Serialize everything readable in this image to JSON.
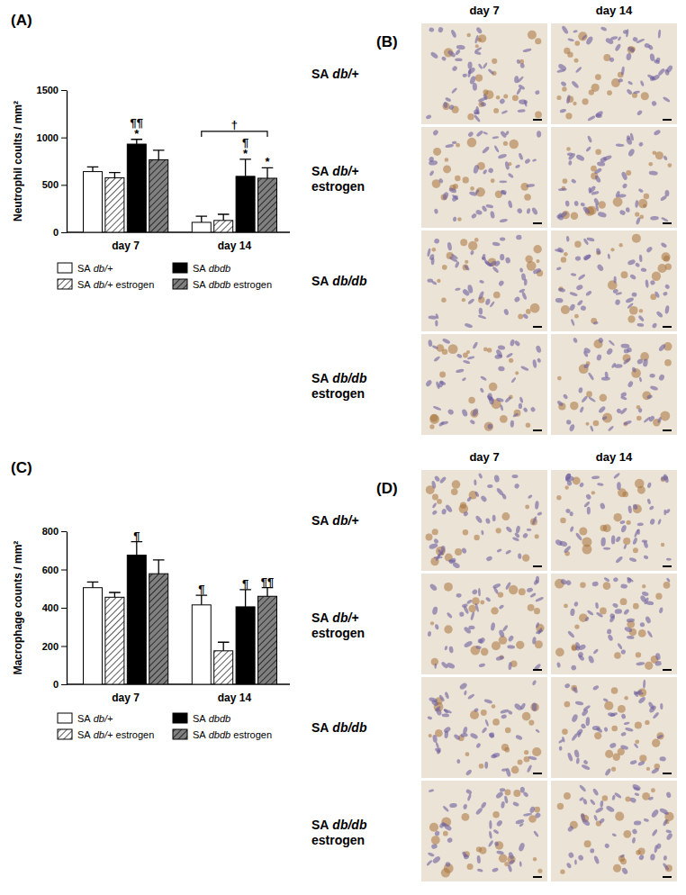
{
  "chart_data": [
    {
      "type": "bar",
      "title": "(A)",
      "y_label": "Neutrophil coults / mm²",
      "categories": [
        "day 7",
        "day 14"
      ],
      "ylim": [
        0,
        1500
      ],
      "yticks": [
        0,
        500,
        1000,
        1500
      ],
      "legend": "bottom",
      "series": [
        {
          "name": "SA db/+",
          "color": "#ffffff",
          "values": [
            640,
            105
          ],
          "errors": [
            50,
            65
          ]
        },
        {
          "name": "SA db/+ estrogen",
          "color": "#ffffff",
          "values": [
            575,
            125
          ],
          "errors": [
            55,
            65
          ]
        },
        {
          "name": "SA dbdb",
          "color": "#000000",
          "values": [
            930,
            590
          ],
          "errors": [
            50,
            180
          ]
        },
        {
          "name": "SA dbdb estrogen",
          "color": "#808080",
          "values": [
            765,
            570
          ],
          "errors": [
            100,
            110
          ]
        }
      ],
      "annotations": [
        {
          "category": 0,
          "series": 2,
          "lines": [
            "¶¶",
            "*"
          ]
        },
        {
          "category": 1,
          "series": 2,
          "lines": [
            "¶",
            "*"
          ]
        },
        {
          "category": 1,
          "series": 3,
          "lines": [
            "*"
          ]
        },
        {
          "category": 1,
          "series": [
            0,
            3
          ],
          "lines": [
            "†"
          ]
        }
      ]
    },
    {
      "type": "bar",
      "title": "(C)",
      "y_label": "Macrophage counts / mm²",
      "categories": [
        "day 7",
        "day 14"
      ],
      "ylim": [
        0,
        800
      ],
      "yticks": [
        0,
        200,
        400,
        600,
        800
      ],
      "legend": "bottom",
      "series": [
        {
          "name": "SA db/+",
          "color": "#ffffff",
          "values": [
            505,
            415
          ],
          "errors": [
            30,
            50
          ]
        },
        {
          "name": "SA db/+ estrogen",
          "color": "#ffffff",
          "values": [
            455,
            175
          ],
          "errors": [
            25,
            45
          ]
        },
        {
          "name": "SA dbdb",
          "color": "#000000",
          "values": [
            675,
            405
          ],
          "errors": [
            70,
            90
          ]
        },
        {
          "name": "SA dbdb estrogen",
          "color": "#808080",
          "values": [
            578,
            460
          ],
          "errors": [
            72,
            45
          ]
        }
      ],
      "annotations": [
        {
          "category": 0,
          "series": 2,
          "lines": [
            "¶"
          ]
        },
        {
          "category": 1,
          "series": 0,
          "lines": [
            "¶"
          ]
        },
        {
          "category": 1,
          "series": 2,
          "lines": [
            "¶"
          ]
        },
        {
          "category": 1,
          "series": 3,
          "lines": [
            "¶¶"
          ]
        }
      ]
    }
  ],
  "image_panels": [
    {
      "title": "(B)",
      "columns": [
        "day 7",
        "day 14"
      ],
      "rows": [
        "SA db/+",
        "SA db/+ estrogen",
        "SA db/db",
        "SA db/db estrogen"
      ]
    },
    {
      "title": "(D)",
      "columns": [
        "day 7",
        "day 14"
      ],
      "rows": [
        "SA db/+",
        "SA db/+ estrogen",
        "SA db/db",
        "SA db/db estrogen"
      ]
    }
  ]
}
